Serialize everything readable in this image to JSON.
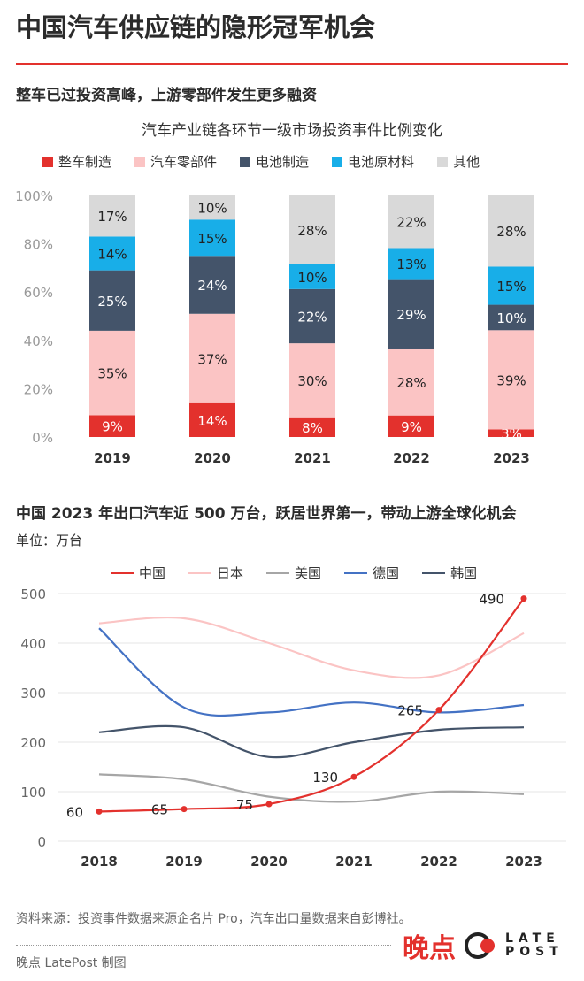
{
  "title": "中国汽车供应链的隐形冠军机会",
  "section1": "整车已过投资高峰，上游零部件发生更多融资",
  "section2": "中国 2023 年出口汽车近 500 万台，跃居世界第一，带动上游全球化机会",
  "unit": "单位：万台",
  "source": "资料来源：投资事件数据来源企名片 Pro，汽车出口量数据来自彭博社。",
  "credit": "晚点 LatePost 制图",
  "logo": {
    "cn": "晚点",
    "en1": "LATE",
    "en2": "POST"
  },
  "watermark": "晚点 LATEPOST",
  "chart_data": [
    {
      "type": "bar",
      "stacked": true,
      "title": "汽车产业链各环节一级市场投资事件比例变化",
      "categories": [
        "2019",
        "2020",
        "2021",
        "2022",
        "2023"
      ],
      "ylim": [
        0,
        100
      ],
      "yticks": [
        "0%",
        "20%",
        "40%",
        "60%",
        "80%",
        "100%"
      ],
      "grid": false,
      "legend": "top",
      "series": [
        {
          "name": "整车制造",
          "color": "#e3312d",
          "values": [
            9,
            14,
            8,
            9,
            3
          ]
        },
        {
          "name": "汽车零部件",
          "color": "#fbc4c4",
          "values": [
            35,
            37,
            30,
            28,
            39
          ]
        },
        {
          "name": "电池制造",
          "color": "#44546a",
          "values": [
            25,
            24,
            22,
            29,
            10
          ]
        },
        {
          "name": "电池原材料",
          "color": "#18aee8",
          "values": [
            14,
            15,
            10,
            13,
            15
          ]
        },
        {
          "name": "其他",
          "color": "#d9d9d9",
          "values": [
            17,
            10,
            28,
            22,
            28
          ]
        }
      ]
    },
    {
      "type": "line",
      "x": [
        "2018",
        "2019",
        "2020",
        "2021",
        "2022",
        "2023"
      ],
      "ylim": [
        0,
        500
      ],
      "yticks": [
        0,
        100,
        200,
        300,
        400,
        500
      ],
      "grid": true,
      "legend": "top",
      "ylabel": "单位：万台",
      "series": [
        {
          "name": "中国",
          "color": "#e3312d",
          "values": [
            60,
            65,
            75,
            130,
            265,
            490
          ],
          "labels": true,
          "markers": true
        },
        {
          "name": "日本",
          "color": "#fbc4c4",
          "values": [
            440,
            450,
            400,
            345,
            335,
            420
          ]
        },
        {
          "name": "美国",
          "color": "#a6a6a6",
          "values": [
            135,
            125,
            90,
            80,
            100,
            95
          ]
        },
        {
          "name": "德国",
          "color": "#4472c4",
          "values": [
            430,
            270,
            260,
            280,
            260,
            275
          ]
        },
        {
          "name": "韩国",
          "color": "#44546a",
          "values": [
            220,
            230,
            170,
            200,
            225,
            230
          ]
        }
      ]
    }
  ]
}
